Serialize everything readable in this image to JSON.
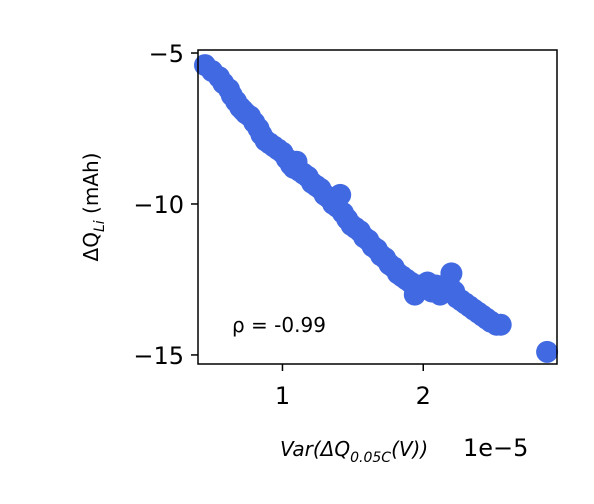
{
  "chart_data": {
    "type": "scatter",
    "xlabel": {
      "prefix": "Var(ΔQ",
      "subscript": "0.05C",
      "suffix": "(V))"
    },
    "ylabel": {
      "prefix": "ΔQ",
      "subscript": "Li",
      "suffix": " (mAh)"
    },
    "x_offset_label": "1e−5",
    "x_scale": 1e-05,
    "xlim": [
      0.4,
      2.95
    ],
    "ylim": [
      -15.3,
      -4.9
    ],
    "xticks": [
      1,
      2
    ],
    "yticks": [
      -5,
      -10,
      -15
    ],
    "ytick_labels": [
      "−5",
      "−10",
      "−15"
    ],
    "grid": false,
    "annotation": "ρ = -0.99",
    "color": "#4169e1",
    "points": [
      [
        0.45,
        -5.4
      ],
      [
        0.5,
        -5.6
      ],
      [
        0.55,
        -5.8
      ],
      [
        0.58,
        -6.0
      ],
      [
        0.62,
        -6.2
      ],
      [
        0.64,
        -6.4
      ],
      [
        0.67,
        -6.6
      ],
      [
        0.7,
        -6.8
      ],
      [
        0.72,
        -6.9
      ],
      [
        0.74,
        -7.0
      ],
      [
        0.77,
        -7.1
      ],
      [
        0.8,
        -7.3
      ],
      [
        0.83,
        -7.5
      ],
      [
        0.85,
        -7.7
      ],
      [
        0.88,
        -7.9
      ],
      [
        0.91,
        -8.0
      ],
      [
        0.94,
        -8.1
      ],
      [
        0.97,
        -8.2
      ],
      [
        1.0,
        -8.3
      ],
      [
        1.03,
        -8.5
      ],
      [
        1.06,
        -8.7
      ],
      [
        1.08,
        -8.8
      ],
      [
        1.1,
        -8.6
      ],
      [
        1.12,
        -8.9
      ],
      [
        1.15,
        -9.0
      ],
      [
        1.18,
        -9.1
      ],
      [
        1.21,
        -9.3
      ],
      [
        1.24,
        -9.4
      ],
      [
        1.27,
        -9.5
      ],
      [
        1.3,
        -9.7
      ],
      [
        1.33,
        -9.8
      ],
      [
        1.36,
        -10.0
      ],
      [
        1.39,
        -10.1
      ],
      [
        1.41,
        -9.7
      ],
      [
        1.43,
        -10.3
      ],
      [
        1.46,
        -10.5
      ],
      [
        1.49,
        -10.7
      ],
      [
        1.52,
        -10.8
      ],
      [
        1.55,
        -10.9
      ],
      [
        1.58,
        -11.1
      ],
      [
        1.61,
        -11.2
      ],
      [
        1.64,
        -11.4
      ],
      [
        1.67,
        -11.5
      ],
      [
        1.7,
        -11.7
      ],
      [
        1.73,
        -11.8
      ],
      [
        1.76,
        -12.0
      ],
      [
        1.79,
        -12.1
      ],
      [
        1.82,
        -12.3
      ],
      [
        1.85,
        -12.4
      ],
      [
        1.88,
        -12.5
      ],
      [
        1.91,
        -12.6
      ],
      [
        1.94,
        -12.8
      ],
      [
        1.94,
        -13.0
      ],
      [
        1.97,
        -12.7
      ],
      [
        2.0,
        -12.8
      ],
      [
        2.03,
        -12.6
      ],
      [
        2.06,
        -12.9
      ],
      [
        2.09,
        -12.7
      ],
      [
        2.12,
        -13.0
      ],
      [
        2.15,
        -12.8
      ],
      [
        2.18,
        -12.6
      ],
      [
        2.2,
        -12.3
      ],
      [
        2.22,
        -12.9
      ],
      [
        2.24,
        -13.1
      ],
      [
        2.27,
        -13.2
      ],
      [
        2.3,
        -13.3
      ],
      [
        2.33,
        -13.4
      ],
      [
        2.36,
        -13.5
      ],
      [
        2.39,
        -13.6
      ],
      [
        2.42,
        -13.7
      ],
      [
        2.45,
        -13.8
      ],
      [
        2.48,
        -13.9
      ],
      [
        2.52,
        -14.0
      ],
      [
        2.55,
        -14.0
      ],
      [
        2.88,
        -14.9
      ]
    ]
  }
}
